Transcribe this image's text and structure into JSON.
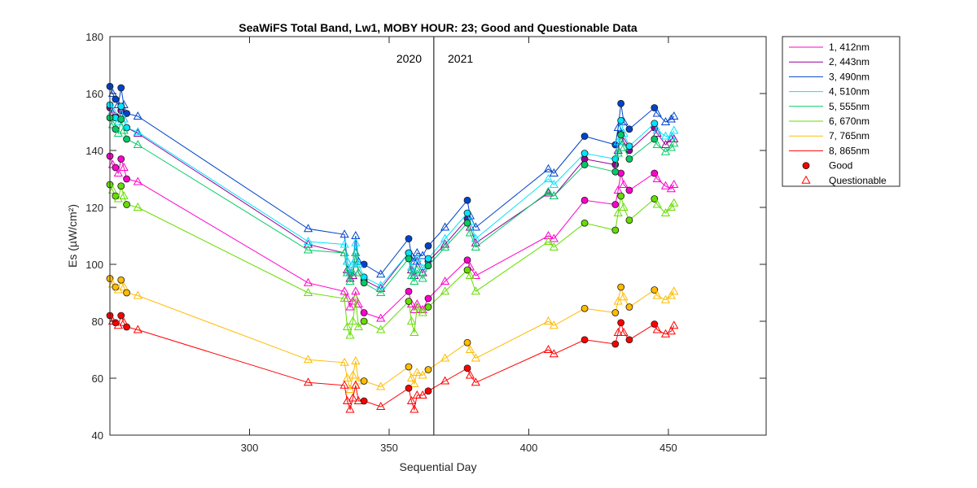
{
  "chart_data": {
    "type": "line",
    "title": "SeaWiFS Total Band,  Lw1, MOBY HOUR: 23;  Good and Questionable Data",
    "xlabel": "Sequential Day",
    "ylabel": "Es (µW/cm²)",
    "xlim": [
      250,
      485
    ],
    "ylim": [
      40,
      180
    ],
    "xticks": [
      300,
      350,
      400,
      450
    ],
    "yticks": [
      40,
      60,
      80,
      100,
      120,
      140,
      160,
      180
    ],
    "grid": false,
    "legend_position": "outside-top-right",
    "annotations": {
      "divider_x": 366,
      "label_left": "2020",
      "label_right": "2021"
    },
    "marker_legend": [
      {
        "label": "Good",
        "marker": "circle"
      },
      {
        "label": "Questionable",
        "marker": "triangle"
      }
    ],
    "x": [
      250,
      251,
      252,
      253,
      254,
      255,
      256,
      260,
      321,
      334,
      335,
      336,
      337,
      338,
      339,
      341,
      347,
      357,
      358,
      359,
      360,
      362,
      364,
      370,
      378,
      379,
      381,
      407,
      409,
      420,
      431,
      432,
      433,
      434,
      436,
      445,
      446,
      449,
      451,
      452
    ],
    "quality": [
      "G",
      "Q",
      "G",
      "Q",
      "G",
      "Q",
      "G",
      "Q",
      "Q",
      "Q",
      "Q",
      "Q",
      "Q",
      "Q",
      "Q",
      "G",
      "Q",
      "G",
      "Q",
      "Q",
      "Q",
      "Q",
      "G",
      "Q",
      "G",
      "Q",
      "Q",
      "Q",
      "Q",
      "G",
      "G",
      "Q",
      "G",
      "Q",
      "G",
      "G",
      "Q",
      "Q",
      "Q",
      "Q"
    ],
    "series": [
      {
        "name": "1, 412nm",
        "color": "#ff00cc",
        "values": [
          138,
          135,
          134,
          132,
          137,
          134,
          130,
          129,
          93.5,
          90.5,
          88,
          85,
          87,
          90.5,
          86,
          83,
          81,
          90.5,
          86,
          84,
          86,
          84,
          88,
          94,
          101.5,
          99,
          96,
          110,
          109,
          122.5,
          121,
          126,
          132,
          128,
          126,
          132,
          130,
          127.5,
          126.5,
          128
        ]
      },
      {
        "name": "2, 443nm",
        "color": "#990099",
        "values": [
          155,
          153,
          152,
          150,
          154,
          151,
          148,
          146,
          107,
          104,
          98,
          95,
          96,
          104,
          97,
          94.5,
          91.5,
          104,
          98,
          96,
          101,
          97,
          101,
          107,
          116,
          113,
          107.5,
          125,
          124,
          137,
          135,
          140,
          146,
          143,
          140,
          148,
          146,
          142,
          144,
          144
        ]
      },
      {
        "name": "3, 490nm",
        "color": "#0044cc",
        "values": [
          162.5,
          160,
          158,
          156,
          162,
          156,
          153,
          152,
          112.5,
          110.5,
          101,
          97,
          100,
          110,
          101,
          100,
          96.5,
          109,
          103,
          101,
          104,
          103,
          106.5,
          113,
          122.5,
          117,
          113,
          133.5,
          132,
          145,
          142,
          148,
          156.5,
          150,
          147.5,
          155,
          153,
          150,
          151,
          152
        ]
      },
      {
        "name": "4, 510nm",
        "color": "#00e5ff",
        "values": [
          156,
          154,
          151.5,
          150,
          155.5,
          151,
          148,
          146.5,
          108,
          107,
          101,
          97,
          100,
          107.5,
          100,
          95.5,
          92.5,
          104,
          99,
          97,
          102,
          98.5,
          102,
          109,
          118,
          115,
          109,
          130,
          128,
          139,
          137,
          143,
          150.5,
          146,
          141.5,
          149.5,
          147,
          145,
          145,
          147
        ]
      },
      {
        "name": "5, 555nm",
        "color": "#00cc66",
        "values": [
          151.5,
          149,
          147.5,
          146,
          151,
          147,
          144,
          142,
          105,
          104,
          97,
          94,
          97,
          104,
          97,
          93.5,
          90,
          102,
          96,
          94,
          98,
          95,
          99.5,
          106,
          114.5,
          111,
          106,
          125.5,
          124,
          135,
          132.5,
          139,
          145.5,
          141,
          137,
          144,
          142,
          139.5,
          141,
          142.5
        ]
      },
      {
        "name": "6, 670nm",
        "color": "#66dd00",
        "values": [
          128,
          126,
          124,
          123,
          127.5,
          124,
          121,
          120,
          90,
          88,
          78,
          75,
          80,
          88,
          78,
          80,
          77,
          87,
          80,
          76,
          85,
          83,
          85,
          90.5,
          98,
          96,
          90.5,
          108,
          106,
          114.5,
          112,
          118,
          124,
          120,
          115.5,
          123,
          121,
          118,
          120,
          121.5
        ]
      },
      {
        "name": "7, 765nm",
        "color": "#ffbb00",
        "values": [
          95,
          93,
          92,
          91,
          94.5,
          92,
          90,
          89,
          66.5,
          65.5,
          60,
          56,
          61,
          66,
          59,
          59,
          57,
          64,
          60,
          58,
          62,
          61,
          63,
          67,
          72.5,
          70,
          67,
          80,
          78.5,
          84.5,
          83,
          87,
          92,
          88.5,
          85,
          91,
          89,
          87.5,
          89,
          90.5
        ]
      },
      {
        "name": "8, 865nm",
        "color": "#ff0000",
        "values": [
          82,
          80,
          79.5,
          78.5,
          82,
          79.5,
          78,
          77,
          58.5,
          57.5,
          52,
          49,
          53,
          57.5,
          52,
          52,
          50,
          56.5,
          52,
          49,
          54,
          54,
          55.5,
          59,
          63.5,
          61,
          58.5,
          70,
          68.5,
          73.5,
          72,
          76,
          79.5,
          76,
          73.5,
          79,
          77,
          75.5,
          76.5,
          78.5
        ]
      }
    ]
  }
}
